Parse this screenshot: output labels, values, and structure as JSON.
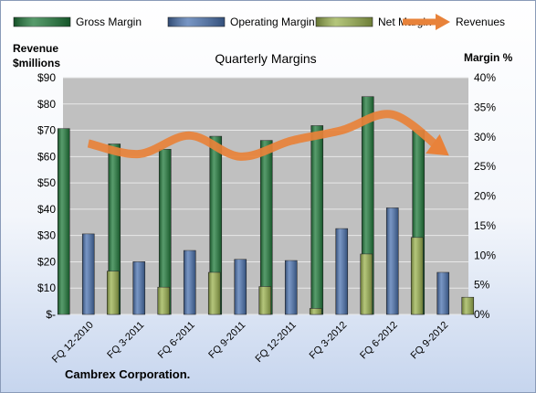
{
  "chart_data": {
    "type": "bar",
    "title": "Quarterly Margins",
    "left_axis_label": [
      "Revenue",
      "$millions"
    ],
    "right_axis_label": "Margin %",
    "footer": "Cambrex Corporation.",
    "categories": [
      "FQ 12-2010",
      "FQ 3-2011",
      "FQ 6-2011",
      "FQ 9-2011",
      "FQ 12-2011",
      "FQ 3-2012",
      "FQ 6-2012",
      "FQ 9-2012"
    ],
    "left_ticks": [
      "$-",
      "$10",
      "$20",
      "$30",
      "$40",
      "$50",
      "$60",
      "$70",
      "$80",
      "$90"
    ],
    "right_ticks": [
      "0%",
      "5%",
      "10%",
      "15%",
      "20%",
      "25%",
      "30%",
      "35%",
      "40%"
    ],
    "left_ylim": [
      0,
      90
    ],
    "right_ylim": [
      0,
      40
    ],
    "legend_position": "top",
    "grid": true,
    "series": [
      {
        "name": "Gross Margin",
        "axis": "right",
        "kind": "bar",
        "color": "#1f7a3a",
        "values": [
          31.4,
          28.8,
          27.9,
          30.1,
          29.4,
          31.9,
          36.8,
          31.1
        ]
      },
      {
        "name": "Operating Margin",
        "axis": "right",
        "kind": "bar",
        "color": "#4a72b0",
        "values": [
          13.6,
          8.9,
          10.8,
          9.3,
          9.1,
          14.5,
          18.0,
          7.1
        ]
      },
      {
        "name": "Net Margin",
        "axis": "right",
        "kind": "bar",
        "color": "#9bb24e",
        "values": [
          7.3,
          4.6,
          7.1,
          4.7,
          1.0,
          10.2,
          13.0,
          2.9
        ]
      },
      {
        "name": "Revenues",
        "axis": "left",
        "kind": "line",
        "color": "#e8823a",
        "values": [
          65,
          61,
          68,
          60,
          66,
          70,
          76,
          62
        ]
      }
    ]
  },
  "colors": {
    "plot_background": "#c0c0c0",
    "gridline": "#e8e8e8",
    "accent_orange": "#e8823a"
  }
}
